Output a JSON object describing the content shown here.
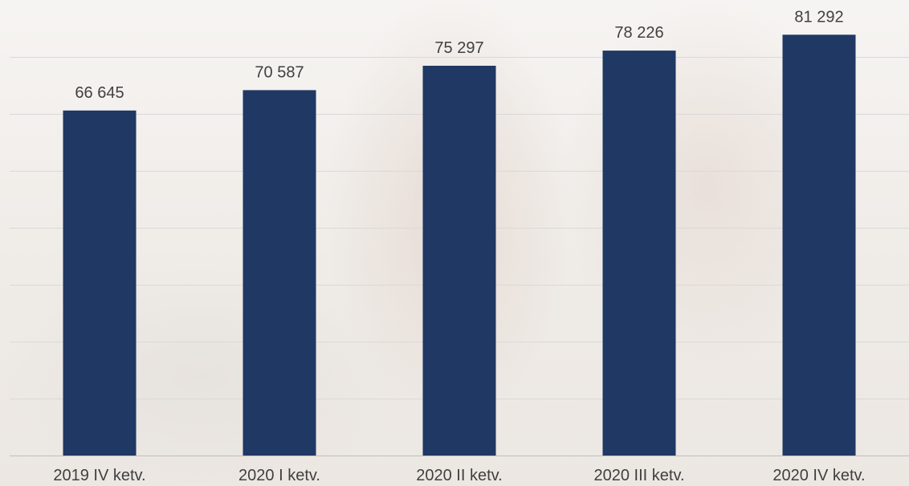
{
  "chart_data": {
    "type": "bar",
    "title": "",
    "xlabel": "",
    "ylabel": "",
    "categories": [
      "2019 IV ketv.",
      "2020 I ketv.",
      "2020 II ketv.",
      "2020 III ketv.",
      "2020 IV ketv."
    ],
    "values": [
      66645,
      70587,
      75297,
      78226,
      81292
    ],
    "value_labels": [
      "66 645",
      "70 587",
      "75 297",
      "78 226",
      "81 292"
    ],
    "ylim": [
      0,
      88000
    ],
    "bar_color": "#1f3864",
    "grid": true,
    "legend": "none"
  }
}
